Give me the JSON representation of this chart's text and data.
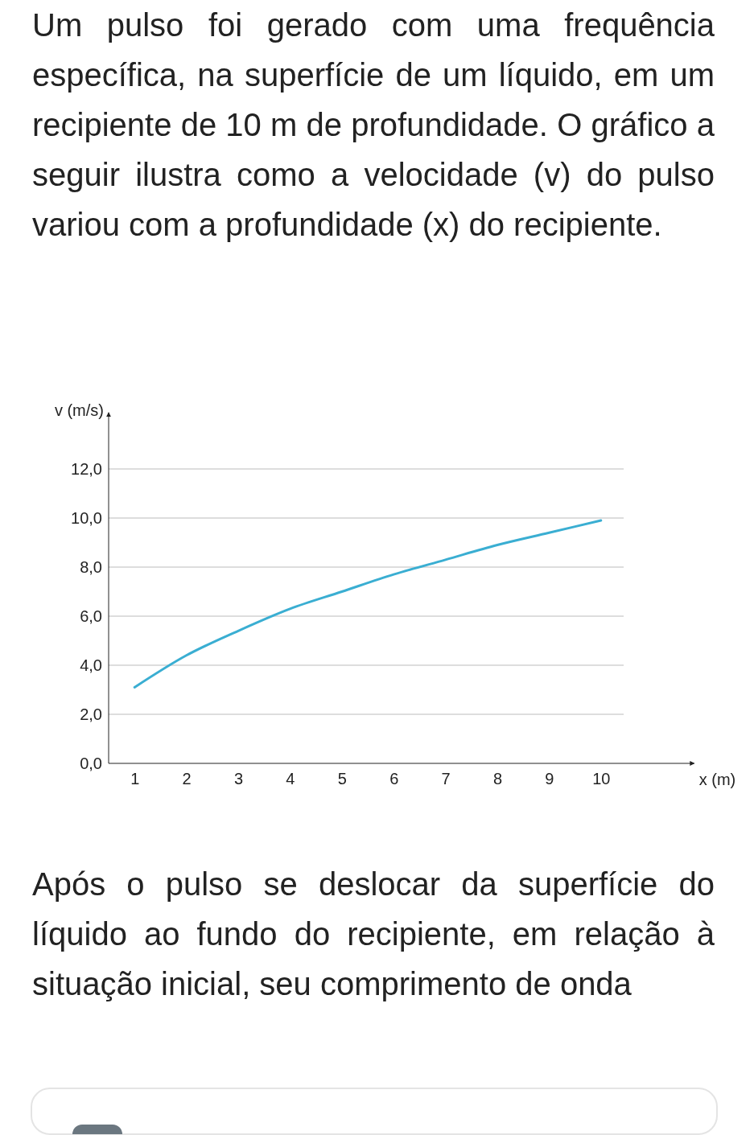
{
  "chart_data": {
    "type": "line",
    "title": "Um pulso foi gerado com uma frequência específica, na superfície de um líquido, em um recipiente de 10 m de profundidade. O gráfico a seguir ilustra como a velocidade (v) do pulso variou com a profundidade (x) do recipiente.",
    "xlabel": "x (m)",
    "ylabel": "v (m/s)",
    "x": [
      1,
      2,
      3,
      4,
      5,
      6,
      7,
      8,
      9,
      10
    ],
    "series": [
      {
        "color": "#3aaed2",
        "values": [
          3.1,
          4.4,
          5.4,
          6.3,
          7.0,
          7.7,
          8.3,
          8.9,
          9.4,
          9.9
        ]
      }
    ],
    "xlim": [
      0.5,
      11.8
    ],
    "ylim": [
      0,
      14.3
    ],
    "xticks": [
      1,
      2,
      3,
      4,
      5,
      6,
      7,
      8,
      9,
      10
    ],
    "yticks": [
      {
        "value": 0,
        "label": "0,0"
      },
      {
        "value": 2,
        "label": "2,0"
      },
      {
        "value": 4,
        "label": "4,0"
      },
      {
        "value": 6,
        "label": "6,0"
      },
      {
        "value": 8,
        "label": "8,0"
      },
      {
        "value": 10,
        "label": "10,0"
      },
      {
        "value": 12,
        "label": "12,0"
      }
    ],
    "grid": "y",
    "marker": "none",
    "line_style": "solid",
    "annotations": [
      "Após o pulso se deslocar da superfície do líquido ao fundo do recipiente, em relação à situação inicial, seu comprimento de onda"
    ]
  }
}
